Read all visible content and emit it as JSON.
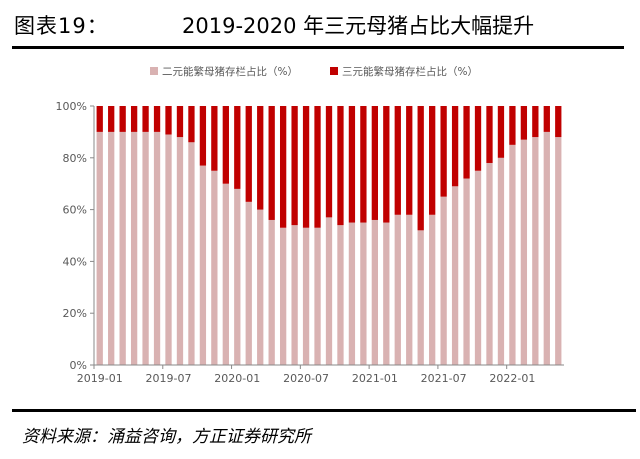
{
  "figure": {
    "label": "图表19：",
    "title": "2019-2020 年三元母猪占比大幅提升",
    "source": "资料来源：涌益咨询，方正证券研究所"
  },
  "chart_data": {
    "type": "bar",
    "stacked": true,
    "ylim": [
      0,
      100
    ],
    "yticks": [
      "0%",
      "20%",
      "40%",
      "60%",
      "80%",
      "100%"
    ],
    "xtick_labels": [
      "2019-01",
      "2019-07",
      "2020-01",
      "2020-07",
      "2021-01",
      "2021-07",
      "2022-01"
    ],
    "categories": [
      "2019-01",
      "2019-02",
      "2019-03",
      "2019-04",
      "2019-05",
      "2019-06",
      "2019-07",
      "2019-08",
      "2019-09",
      "2019-10",
      "2019-11",
      "2019-12",
      "2020-01",
      "2020-02",
      "2020-03",
      "2020-04",
      "2020-05",
      "2020-06",
      "2020-07",
      "2020-08",
      "2020-09",
      "2020-10",
      "2020-11",
      "2020-12",
      "2021-01",
      "2021-02",
      "2021-03",
      "2021-04",
      "2021-05",
      "2021-06",
      "2021-07",
      "2021-08",
      "2021-09",
      "2021-10",
      "2021-11",
      "2021-12",
      "2022-01",
      "2022-02",
      "2022-03",
      "2022-04",
      "2022-05"
    ],
    "series": [
      {
        "name": "二元能繁母猪存栏占比（%）",
        "color": "#d9b2b2",
        "values": [
          90,
          90,
          90,
          90,
          90,
          90,
          89,
          88,
          86,
          77,
          75,
          70,
          68,
          63,
          60,
          56,
          53,
          54,
          53,
          53,
          57,
          54,
          55,
          55,
          56,
          55,
          58,
          58,
          52,
          58,
          65,
          69,
          72,
          75,
          78,
          80,
          85,
          87,
          88,
          90,
          88
        ]
      },
      {
        "name": "三元能繁母猪存栏占比（%）",
        "color": "#c00000",
        "values": [
          10,
          10,
          10,
          10,
          10,
          10,
          11,
          12,
          14,
          23,
          25,
          30,
          32,
          37,
          40,
          44,
          47,
          46,
          47,
          47,
          43,
          46,
          45,
          45,
          44,
          45,
          42,
          42,
          48,
          42,
          35,
          31,
          28,
          25,
          22,
          20,
          15,
          13,
          12,
          10,
          12
        ]
      }
    ]
  }
}
